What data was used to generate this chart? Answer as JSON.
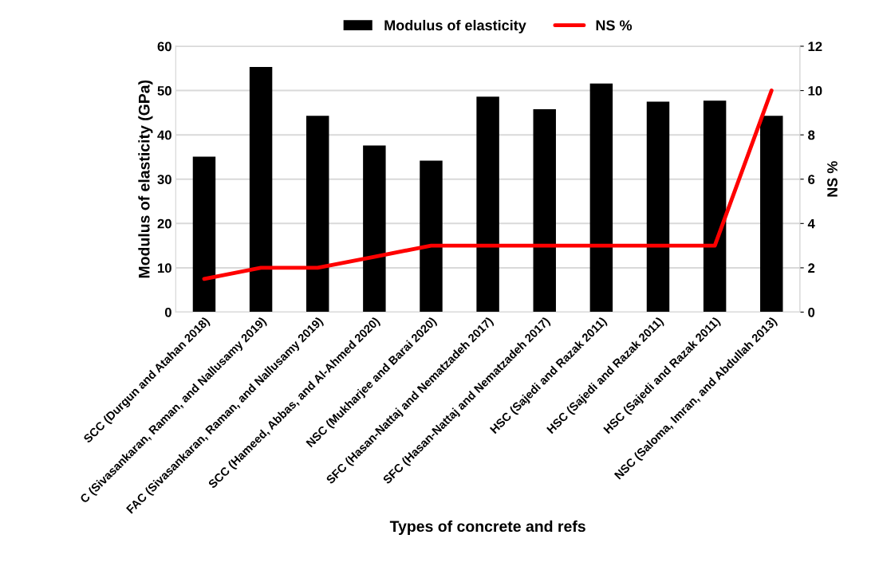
{
  "chart_data": {
    "type": "bar",
    "xlabel": "Types of concrete and refs",
    "ylabel": "Modulus of elasticity (GPa)",
    "y2label": "NS %",
    "categories": [
      "SCC (Durgun and Atahan 2018)",
      "C (Sivasankaran, Raman, and Nallusamy 2019)",
      "FAC (Sivasankaran, Raman, and Nallusamy 2019)",
      "SCC (Hameed, Abbas, and Al-Ahmed 2020)",
      "NSC (Mukharjee and Barai 2020)",
      "SFC (Hasan-Nattaj and Nematzadeh 2017)",
      "SFC (Hasan-Nattaj and Nematzadeh 2017)",
      "HSC (Sajedi and Razak 2011)",
      "HSC (Sajedi and Razak 2011)",
      "HSC (Sajedi and Razak 2011)",
      "NSC (Saloma, Imran, and Abdullah 2013)"
    ],
    "series": [
      {
        "name": "Modulus of elasticity",
        "color": "#000000",
        "values": [
          35.1,
          55.3,
          44.3,
          37.6,
          34.2,
          48.6,
          45.8,
          51.6,
          47.5,
          47.7,
          44.3
        ]
      },
      {
        "name": "NS %",
        "type": "line",
        "axis": "y2",
        "color": "#ff0000",
        "values": [
          1.5,
          2,
          2,
          2.5,
          3,
          3,
          3,
          3,
          3,
          3,
          10
        ]
      }
    ],
    "ylim": [
      0,
      60
    ],
    "yticks": [
      0,
      10,
      20,
      30,
      40,
      50,
      60
    ],
    "y2lim": [
      0,
      12
    ],
    "y2ticks": [
      0,
      2,
      4,
      6,
      8,
      10,
      12
    ],
    "grid": "y",
    "legend": "top",
    "marker": "none",
    "line_style": "solid"
  }
}
